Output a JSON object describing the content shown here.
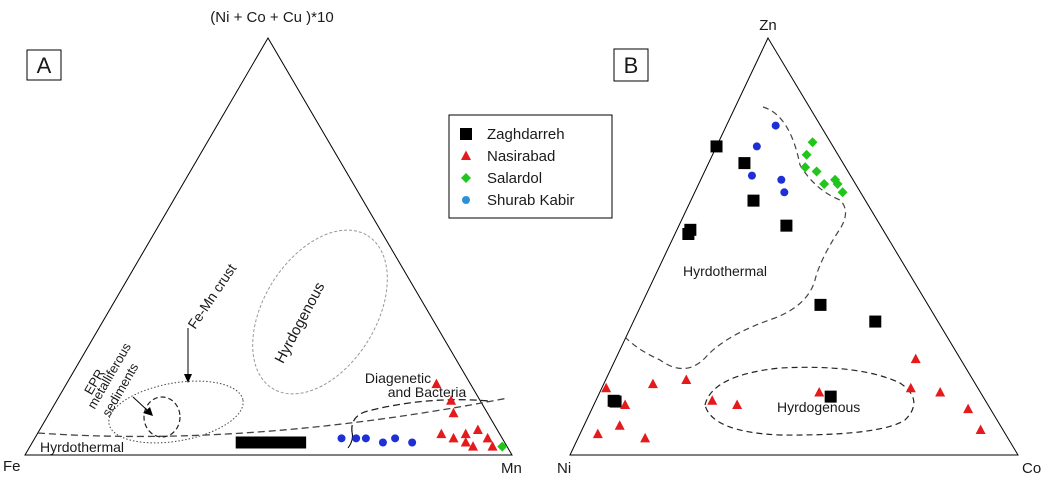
{
  "legend": {
    "placement": "center-top",
    "items": [
      {
        "label": "Zaghdarreh",
        "marker": "square",
        "color": "#000000"
      },
      {
        "label": "Nasirabad",
        "marker": "triangle",
        "color": "#e41a1c"
      },
      {
        "label": "Salardol",
        "marker": "diamond",
        "color": "#22c51b"
      },
      {
        "label": "Shurab Kabir",
        "marker": "circle",
        "color": "#2c92d8"
      }
    ]
  },
  "colors": {
    "shurab_points": "#1f2fd6"
  },
  "chart_data": [
    {
      "type": "ternary-scatter",
      "panel_label": "A",
      "vertices": {
        "top": "(Ni + Co + Cu )*10",
        "left": "Fe",
        "right": "Mn"
      },
      "field_labels": {
        "hydrogenous": "Hyrdogenous",
        "hydrothermal": "Hyrdothermal",
        "diagenetic_1": "Diagenetic",
        "diagenetic_2": "and Bacteria",
        "femn": "Fe-Mn crust",
        "epr_1": "EPR",
        "epr_2": "metalliferous",
        "epr_3": "sediments"
      },
      "series": [
        {
          "name": "Zaghdarreh",
          "points": [
            [
              0.03,
              0.42,
              0.55
            ],
            [
              0.03,
              0.44,
              0.53
            ],
            [
              0.03,
              0.46,
              0.51
            ],
            [
              0.03,
              0.48,
              0.49
            ],
            [
              0.03,
              0.5,
              0.47
            ],
            [
              0.03,
              0.52,
              0.45
            ],
            [
              0.03,
              0.54,
              0.43
            ]
          ]
        },
        {
          "name": "Nasirabad",
          "points": [
            [
              0.17,
              0.07,
              0.76
            ],
            [
              0.13,
              0.06,
              0.81
            ],
            [
              0.1,
              0.07,
              0.83
            ],
            [
              0.05,
              0.12,
              0.83
            ],
            [
              0.04,
              0.1,
              0.86
            ],
            [
              0.05,
              0.07,
              0.88
            ],
            [
              0.06,
              0.04,
              0.9
            ],
            [
              0.03,
              0.08,
              0.89
            ],
            [
              0.02,
              0.07,
              0.91
            ],
            [
              0.04,
              0.03,
              0.93
            ],
            [
              0.02,
              0.03,
              0.95
            ]
          ]
        },
        {
          "name": "Salardol",
          "points": [
            [
              0.02,
              0.01,
              0.97
            ]
          ]
        },
        {
          "name": "Shurab Kabir",
          "points": [
            [
              0.04,
              0.33,
              0.63
            ],
            [
              0.04,
              0.3,
              0.66
            ],
            [
              0.04,
              0.28,
              0.68
            ],
            [
              0.03,
              0.25,
              0.72
            ],
            [
              0.04,
              0.22,
              0.74
            ],
            [
              0.03,
              0.19,
              0.78
            ]
          ]
        }
      ]
    },
    {
      "type": "ternary-scatter",
      "panel_label": "B",
      "vertices": {
        "top": "Zn",
        "left": "Ni",
        "right": "Co"
      },
      "field_labels": {
        "hydrothermal": "Hyrdothermal",
        "hydrogenous": "Hyrdogenous"
      },
      "series": [
        {
          "name": "Zaghdarreh",
          "points": [
            [
              0.74,
              0.26,
              0.0
            ],
            [
              0.7,
              0.22,
              0.08
            ],
            [
              0.61,
              0.25,
              0.14
            ],
            [
              0.54,
              0.43,
              0.03
            ],
            [
              0.53,
              0.44,
              0.03
            ],
            [
              0.55,
              0.21,
              0.24
            ],
            [
              0.36,
              0.24,
              0.4
            ],
            [
              0.32,
              0.14,
              0.54
            ],
            [
              0.14,
              0.34,
              0.52
            ],
            [
              0.15,
              0.86,
              0.01
            ],
            [
              0.13,
              0.83,
              0.04
            ]
          ]
        },
        {
          "name": "Nasirabad",
          "points": [
            [
              0.23,
              0.1,
              0.67
            ],
            [
              0.15,
              0.09,
              0.76
            ],
            [
              0.18,
              0.64,
              0.18
            ],
            [
              0.17,
              0.72,
              0.11
            ],
            [
              0.16,
              0.83,
              0.01
            ],
            [
              0.12,
              0.81,
              0.07
            ],
            [
              0.07,
              0.85,
              0.08
            ],
            [
              0.05,
              0.91,
              0.04
            ],
            [
              0.04,
              0.81,
              0.15
            ],
            [
              0.15,
              0.36,
              0.49
            ],
            [
              0.12,
              0.56,
              0.32
            ],
            [
              0.13,
              0.61,
              0.26
            ],
            [
              0.16,
              0.15,
              0.69
            ],
            [
              0.11,
              0.05,
              0.84
            ],
            [
              0.06,
              0.05,
              0.89
            ]
          ]
        },
        {
          "name": "Salardol",
          "points": [
            [
              0.75,
              0.04,
              0.21
            ],
            [
              0.72,
              0.07,
              0.21
            ],
            [
              0.69,
              0.09,
              0.22
            ],
            [
              0.68,
              0.07,
              0.25
            ],
            [
              0.66,
              0.04,
              0.3
            ],
            [
              0.65,
              0.07,
              0.28
            ],
            [
              0.65,
              0.04,
              0.31
            ],
            [
              0.63,
              0.04,
              0.33
            ]
          ]
        },
        {
          "name": "Shurab Kabir",
          "points": [
            [
              0.79,
              0.1,
              0.11
            ],
            [
              0.74,
              0.17,
              0.09
            ],
            [
              0.67,
              0.22,
              0.11
            ],
            [
              0.66,
              0.16,
              0.18
            ],
            [
              0.63,
              0.17,
              0.2
            ]
          ]
        }
      ]
    }
  ]
}
